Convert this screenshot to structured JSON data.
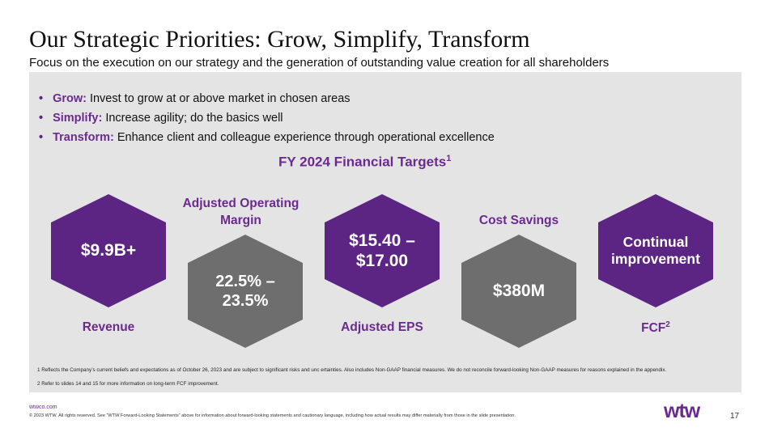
{
  "slide": {
    "title": "Our Strategic Priorities: Grow, Simplify, Transform",
    "subtitle": "Focus on the execution on our strategy and the generation of outstanding value creation for all shareholders"
  },
  "priorities": [
    {
      "bullet": "•",
      "keyword": "Grow:",
      "text": "Invest to grow at or above market in chosen areas"
    },
    {
      "bullet": "•",
      "keyword": "Simplify:",
      "text": "Increase agility; do the basics well"
    },
    {
      "bullet": "•",
      "keyword": "Transform:",
      "text": "Enhance client and colleague experience through operational excellence"
    }
  ],
  "targets": {
    "title": "FY 2024 Financial Targets",
    "title_sup": "1",
    "items": [
      {
        "value_line1": "$9.9B+",
        "value_line2": "",
        "label": "Revenue",
        "label_sup": "",
        "color": "#5c2483"
      },
      {
        "value_line1": "22.5% –",
        "value_line2": "23.5%",
        "label_line1": "Adjusted Operating",
        "label_line2": "Margin",
        "color": "#6e6e6e"
      },
      {
        "value_line1": "$15.40 –",
        "value_line2": "$17.00",
        "label": "Adjusted EPS",
        "label_sup": "",
        "color": "#5c2483"
      },
      {
        "value_line1": "$380M",
        "value_line2": "",
        "label": "Cost Savings",
        "label_sup": "",
        "color": "#6e6e6e"
      },
      {
        "value_line1": "Continual",
        "value_line2": "improvement",
        "label": "FCF",
        "label_sup": "2",
        "color": "#5c2483"
      }
    ]
  },
  "footnotes": {
    "note1": "1 Reflects the Company’s current beliefs and expectations as of October 26, 2023 and are subject to significant risks and unc ertainties. Also includes Non-GAAP financial measures. We do not reconcile forward-looking Non-GAAP measures for reasons explained in the appendix.",
    "note2": "2 Refer to slides 14 and 15 for more information on long-term FCF improvement."
  },
  "footer": {
    "site": "wtwco.com",
    "copyright": "© 2023 WTW. All rights reserved. See “WTW Forward-Looking Statements” above for information about forward-looking statements and cautionary language, including how actual results may differ materially from those in the slide presentation.",
    "logo": "wtw",
    "page_number": "17"
  },
  "colors": {
    "accent": "#6b2a8f",
    "purple_hex": "#5c2483",
    "gray_hex": "#6e6e6e",
    "panel": "#e4e4e4"
  }
}
